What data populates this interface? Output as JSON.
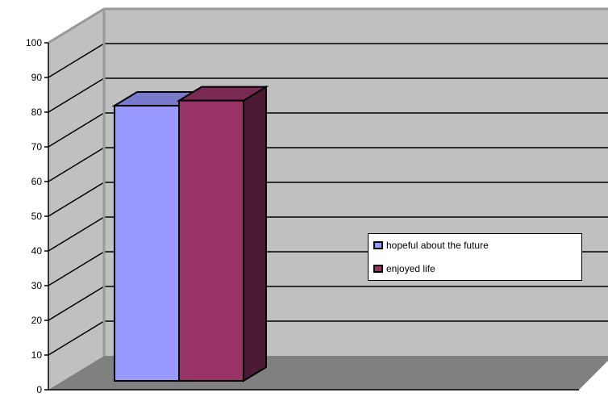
{
  "chart_data": {
    "type": "bar",
    "categories": [
      ""
    ],
    "series": [
      {
        "name": "hopeful about the future",
        "values": [
          81
        ],
        "color": "#9999ff"
      },
      {
        "name": "enjoyed life",
        "values": [
          82.5
        ],
        "color": "#993366"
      }
    ],
    "ylim": [
      0,
      100
    ],
    "yticks": [
      "0",
      "10",
      "20",
      "30",
      "40",
      "50",
      "60",
      "70",
      "80",
      "90",
      "100"
    ],
    "grid": true,
    "legend_position": "right",
    "colors": {
      "wall": "#c0c0c0",
      "floor": "#808080",
      "gridline": "#000000"
    }
  }
}
